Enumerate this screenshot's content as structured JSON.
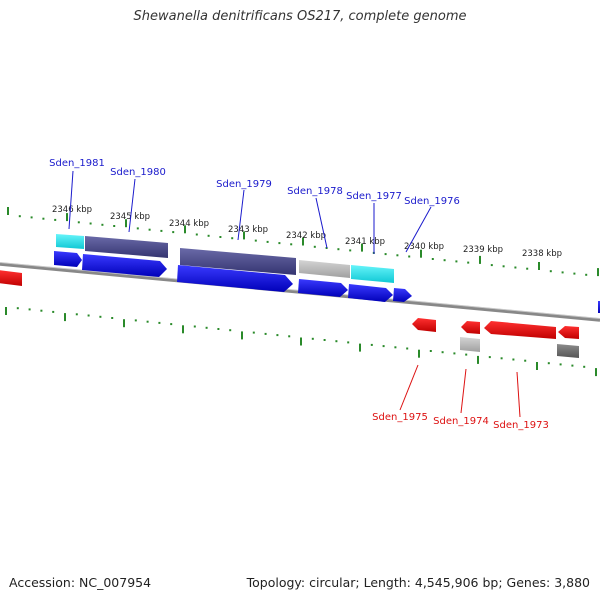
{
  "title": "Shewanella denitrificans OS217, complete genome",
  "footer": {
    "accession": "Accession: NC_007954",
    "topology": "Topology: circular; Length: 4,545,906 bp; Genes: 3,880"
  },
  "colors": {
    "forward_label": "#1a1acc",
    "reverse_label": "#dd1111",
    "cds_forward": "#0000e6",
    "cds_reverse": "#ee0000",
    "gene_dark": "#4a4a8c",
    "gene_cyan": "#22e6ee",
    "gene_gray": "#b4b4b4",
    "gene_darkgray": "#6e6e6e",
    "tick": "#2a8a2a",
    "backbone": "#888888"
  },
  "ticks": [
    {
      "label": "2346 kbp"
    },
    {
      "label": "2345 kbp"
    },
    {
      "label": "2344 kbp"
    },
    {
      "label": "2343 kbp"
    },
    {
      "label": "2342 kbp"
    },
    {
      "label": "2341 kbp"
    },
    {
      "label": "2340 kbp"
    },
    {
      "label": "2339 kbp"
    },
    {
      "label": "2338 kbp"
    }
  ],
  "genes_forward": [
    {
      "name": "Sden_1981"
    },
    {
      "name": "Sden_1980"
    },
    {
      "name": "Sden_1979"
    },
    {
      "name": "Sden_1978"
    },
    {
      "name": "Sden_1977"
    },
    {
      "name": "Sden_1976"
    }
  ],
  "genes_reverse": [
    {
      "name": "Sden_1975"
    },
    {
      "name": "Sden_1974"
    },
    {
      "name": "Sden_1973"
    }
  ]
}
